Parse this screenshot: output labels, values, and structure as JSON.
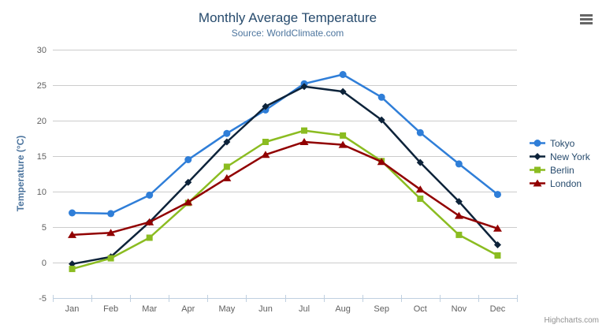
{
  "header": {
    "title": "Monthly Average Temperature",
    "subtitle": "Source: WorldClimate.com"
  },
  "chart_data": {
    "type": "line",
    "title": "Monthly Average Temperature",
    "subtitle": "Source: WorldClimate.com",
    "categories": [
      "Jan",
      "Feb",
      "Mar",
      "Apr",
      "May",
      "Jun",
      "Jul",
      "Aug",
      "Sep",
      "Oct",
      "Nov",
      "Dec"
    ],
    "series": [
      {
        "name": "Tokyo",
        "color": "#2f7ed8",
        "marker": "circle",
        "values": [
          7.0,
          6.9,
          9.5,
          14.5,
          18.2,
          21.5,
          25.2,
          26.5,
          23.3,
          18.3,
          13.9,
          9.6
        ]
      },
      {
        "name": "New York",
        "color": "#0d233a",
        "marker": "diamond",
        "values": [
          -0.2,
          0.8,
          5.7,
          11.3,
          17.0,
          22.0,
          24.8,
          24.1,
          20.1,
          14.1,
          8.6,
          2.5
        ]
      },
      {
        "name": "Berlin",
        "color": "#8bbc21",
        "marker": "square",
        "values": [
          -0.9,
          0.6,
          3.5,
          8.4,
          13.5,
          17.0,
          18.6,
          17.9,
          14.3,
          9.0,
          3.9,
          1.0
        ]
      },
      {
        "name": "London",
        "color": "#910000",
        "marker": "triangle",
        "values": [
          3.9,
          4.2,
          5.7,
          8.5,
          11.9,
          15.2,
          17.0,
          16.6,
          14.2,
          10.3,
          6.6,
          4.8
        ]
      }
    ],
    "xlabel": "",
    "ylabel": "Temperature (°C)",
    "ylim": [
      -5,
      30
    ],
    "yticks": [
      -5,
      0,
      5,
      10,
      15,
      20,
      25,
      30
    ],
    "grid": true,
    "legend_position": "right"
  },
  "colors": {
    "title": "#274b6d",
    "subtitle": "#4d759e",
    "grid": "#cccccc",
    "axis_line": "#c0d0e0",
    "tick_label": "#606060",
    "legend_text": "#274b6d",
    "credits": "#909090",
    "menu_icon": "#666666"
  },
  "credits": {
    "label": "Highcharts.com"
  }
}
